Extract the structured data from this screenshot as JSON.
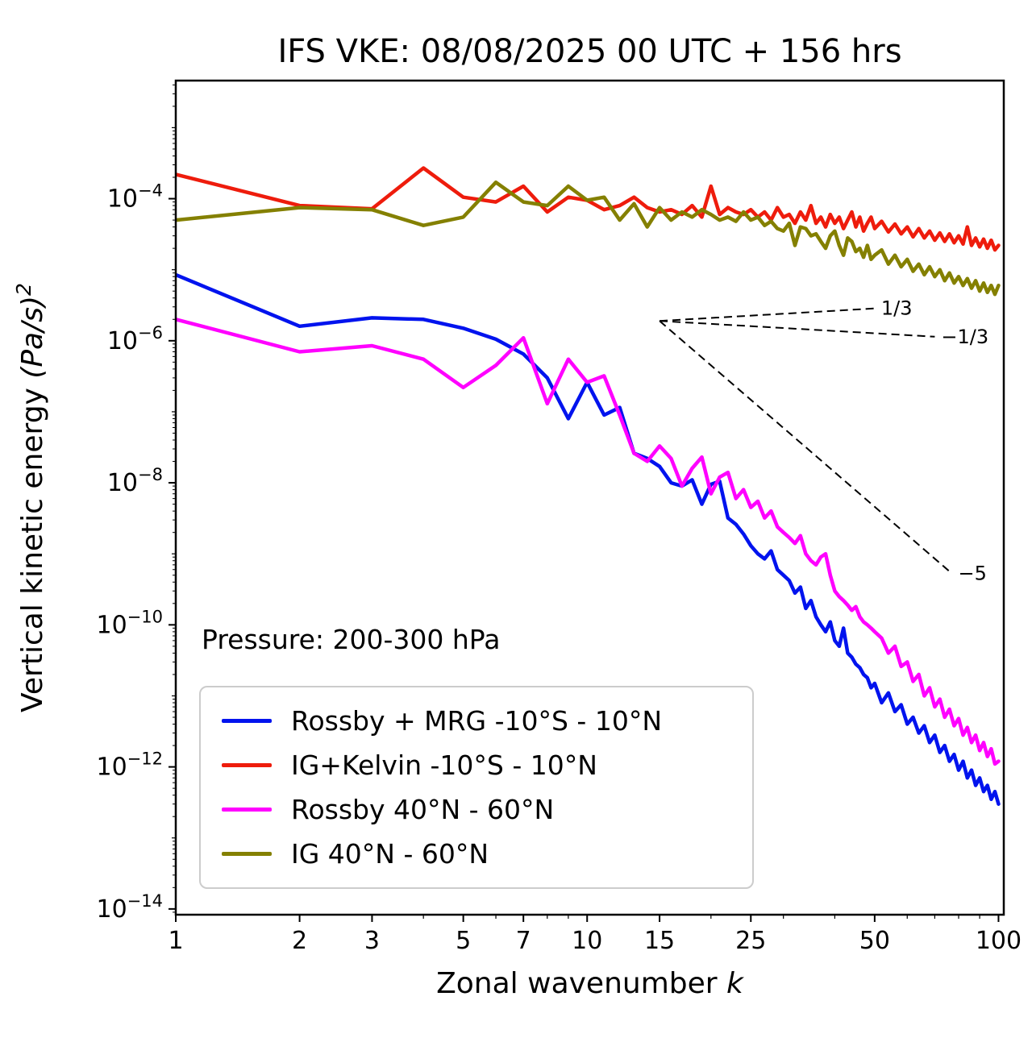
{
  "chart_data": {
    "type": "line",
    "title": "IFS VKE: 08/08/2025 00 UTC + 156 hrs",
    "xlabel": "Zonal wavenumber k",
    "ylabel": "Vertical kinetic energy (Pa/s)²",
    "xscale": "log",
    "yscale": "log",
    "xlim": [
      1,
      103
    ],
    "ylim": [
      8.3e-15,
      0.0046
    ],
    "x_ticks": [
      1,
      2,
      3,
      5,
      7,
      10,
      15,
      25,
      50,
      100
    ],
    "x_minor_ticks": [
      4,
      6,
      8,
      9,
      20,
      30,
      40,
      60,
      70,
      80,
      90
    ],
    "y_tick_exponents": [
      -14,
      -12,
      -10,
      -8,
      -6,
      -4
    ],
    "y_unlabeled_decades": [
      -13,
      -11,
      -9,
      -7,
      -5,
      -3
    ],
    "grid": false,
    "legend_position": "lower left",
    "annotation": {
      "text": "Pressure: 200-300 hPa"
    },
    "guides": [
      {
        "label": "1/3",
        "x1": 15,
        "y1": 1.9e-06,
        "x2": 50,
        "y2": 2.85e-06
      },
      {
        "label": "-1/3",
        "x1": 15,
        "y1": 1.9e-06,
        "x2": 70,
        "y2": 1.14e-06
      },
      {
        "label": "-5",
        "x1": 15,
        "y1": 1.9e-06,
        "x2": 77,
        "y2": 5.3e-10
      }
    ],
    "series": [
      {
        "name": "Rossby + MRG -10°S - 10°N",
        "color": "#0013ee",
        "points": [
          [
            1,
            8.5e-06
          ],
          [
            2,
            1.6e-06
          ],
          [
            3,
            2.1e-06
          ],
          [
            4,
            2e-06
          ],
          [
            5,
            1.5e-06
          ],
          [
            6,
            1.05e-06
          ],
          [
            7,
            6.5e-07
          ],
          [
            8,
            3e-07
          ],
          [
            9,
            8e-08
          ],
          [
            10,
            2.6e-07
          ],
          [
            11,
            9e-08
          ],
          [
            12,
            1.15e-07
          ],
          [
            13,
            2.6e-08
          ],
          [
            14,
            2.2e-08
          ],
          [
            15,
            1.7e-08
          ],
          [
            16,
            1e-08
          ],
          [
            17,
            9e-09
          ],
          [
            18,
            1.1e-08
          ],
          [
            19,
            5e-09
          ],
          [
            20,
            9.5e-09
          ],
          [
            21,
            1.05e-08
          ],
          [
            22,
            3.2e-09
          ],
          [
            23,
            2.6e-09
          ],
          [
            24,
            1.9e-09
          ],
          [
            25,
            1.3e-09
          ],
          [
            26,
            1e-09
          ],
          [
            27,
            8.5e-10
          ],
          [
            28,
            1.1e-09
          ],
          [
            29,
            6e-10
          ],
          [
            30,
            5e-10
          ],
          [
            31,
            4.2e-10
          ],
          [
            32,
            2.8e-10
          ],
          [
            33,
            3.4e-10
          ],
          [
            34,
            1.7e-10
          ],
          [
            35,
            2.2e-10
          ],
          [
            36,
            1.3e-10
          ],
          [
            37,
            1e-10
          ],
          [
            38,
            8e-11
          ],
          [
            39,
            1.1e-10
          ],
          [
            40,
            6e-11
          ],
          [
            41,
            5e-11
          ],
          [
            42,
            9e-11
          ],
          [
            43,
            4e-11
          ],
          [
            44,
            3.5e-11
          ],
          [
            45,
            2.8e-11
          ],
          [
            46,
            2.5e-11
          ],
          [
            47,
            2e-11
          ],
          [
            48,
            1.8e-11
          ],
          [
            49,
            1.3e-11
          ],
          [
            50,
            1.5e-11
          ],
          [
            52,
            8e-12
          ],
          [
            54,
            1.1e-11
          ],
          [
            56,
            6e-12
          ],
          [
            58,
            7.5e-12
          ],
          [
            60,
            4e-12
          ],
          [
            62,
            5e-12
          ],
          [
            64,
            3e-12
          ],
          [
            66,
            3.8e-12
          ],
          [
            68,
            2.2e-12
          ],
          [
            70,
            2.8e-12
          ],
          [
            72,
            1.6e-12
          ],
          [
            74,
            2e-12
          ],
          [
            76,
            1.2e-12
          ],
          [
            78,
            1.5e-12
          ],
          [
            80,
            9e-13
          ],
          [
            82,
            1.2e-12
          ],
          [
            84,
            7e-13
          ],
          [
            86,
            9e-13
          ],
          [
            88,
            5.5e-13
          ],
          [
            90,
            7e-13
          ],
          [
            92,
            4.5e-13
          ],
          [
            94,
            5.5e-13
          ],
          [
            96,
            3.5e-13
          ],
          [
            98,
            4.5e-13
          ],
          [
            100,
            3e-13
          ]
        ]
      },
      {
        "name": "IG+Kelvin -10°S - 10°N",
        "color": "#ee1c0c",
        "points": [
          [
            1,
            0.00022
          ],
          [
            2,
            8e-05
          ],
          [
            3,
            7.2e-05
          ],
          [
            4,
            0.00027
          ],
          [
            5,
            0.000105
          ],
          [
            6,
            9e-05
          ],
          [
            7,
            0.00015
          ],
          [
            8,
            6.5e-05
          ],
          [
            9,
            0.000105
          ],
          [
            10,
            9.5e-05
          ],
          [
            11,
            7e-05
          ],
          [
            12,
            8e-05
          ],
          [
            13,
            0.000105
          ],
          [
            14,
            7.5e-05
          ],
          [
            15,
            6.5e-05
          ],
          [
            16,
            7e-05
          ],
          [
            17,
            6e-05
          ],
          [
            18,
            8e-05
          ],
          [
            19,
            5.5e-05
          ],
          [
            20,
            0.00015
          ],
          [
            21,
            6e-05
          ],
          [
            22,
            7.5e-05
          ],
          [
            23,
            6.5e-05
          ],
          [
            24,
            6e-05
          ],
          [
            25,
            7e-05
          ],
          [
            26,
            5.5e-05
          ],
          [
            27,
            6.5e-05
          ],
          [
            28,
            5e-05
          ],
          [
            29,
            7.5e-05
          ],
          [
            30,
            5.5e-05
          ],
          [
            31,
            6e-05
          ],
          [
            32,
            4.5e-05
          ],
          [
            33,
            6.5e-05
          ],
          [
            34,
            5e-05
          ],
          [
            35,
            8e-05
          ],
          [
            36,
            4.5e-05
          ],
          [
            37,
            5.5e-05
          ],
          [
            38,
            4e-05
          ],
          [
            39,
            6e-05
          ],
          [
            40,
            4.5e-05
          ],
          [
            41,
            5.5e-05
          ],
          [
            42,
            3.8e-05
          ],
          [
            43,
            5e-05
          ],
          [
            44,
            6.5e-05
          ],
          [
            45,
            4e-05
          ],
          [
            46,
            5.5e-05
          ],
          [
            47,
            3.5e-05
          ],
          [
            48,
            4.5e-05
          ],
          [
            49,
            5.5e-05
          ],
          [
            50,
            3.8e-05
          ],
          [
            52,
            4.8e-05
          ],
          [
            54,
            3.4e-05
          ],
          [
            56,
            4.4e-05
          ],
          [
            58,
            3.2e-05
          ],
          [
            60,
            4e-05
          ],
          [
            62,
            2.9e-05
          ],
          [
            64,
            3.8e-05
          ],
          [
            66,
            2.8e-05
          ],
          [
            68,
            3.5e-05
          ],
          [
            70,
            2.6e-05
          ],
          [
            72,
            3.3e-05
          ],
          [
            74,
            2.5e-05
          ],
          [
            76,
            3.2e-05
          ],
          [
            78,
            2.4e-05
          ],
          [
            80,
            3e-05
          ],
          [
            82,
            2.3e-05
          ],
          [
            84,
            4e-05
          ],
          [
            86,
            2.2e-05
          ],
          [
            88,
            2.8e-05
          ],
          [
            90,
            2.1e-05
          ],
          [
            92,
            2.7e-05
          ],
          [
            94,
            2e-05
          ],
          [
            96,
            2.6e-05
          ],
          [
            98,
            1.9e-05
          ],
          [
            100,
            2.2e-05
          ]
        ]
      },
      {
        "name": "Rossby 40°N - 60°N",
        "color": "#ff00ff",
        "points": [
          [
            1,
            2e-06
          ],
          [
            2,
            7e-07
          ],
          [
            3,
            8.5e-07
          ],
          [
            4,
            5.5e-07
          ],
          [
            5,
            2.2e-07
          ],
          [
            6,
            4.5e-07
          ],
          [
            7,
            1.1e-06
          ],
          [
            8,
            1.3e-07
          ],
          [
            9,
            5.5e-07
          ],
          [
            10,
            2.6e-07
          ],
          [
            11,
            3.2e-07
          ],
          [
            12,
            9e-08
          ],
          [
            13,
            2.6e-08
          ],
          [
            14,
            2e-08
          ],
          [
            15,
            3.3e-08
          ],
          [
            16,
            2.2e-08
          ],
          [
            17,
            9e-09
          ],
          [
            18,
            1.6e-08
          ],
          [
            19,
            2.3e-08
          ],
          [
            20,
            7e-09
          ],
          [
            21,
            1.2e-08
          ],
          [
            22,
            1.4e-08
          ],
          [
            23,
            6e-09
          ],
          [
            24,
            8e-09
          ],
          [
            25,
            4.5e-09
          ],
          [
            26,
            5.5e-09
          ],
          [
            27,
            3.2e-09
          ],
          [
            28,
            4e-09
          ],
          [
            29,
            2.4e-09
          ],
          [
            30,
            2e-09
          ],
          [
            31,
            1.7e-09
          ],
          [
            32,
            1.4e-09
          ],
          [
            33,
            1.8e-09
          ],
          [
            34,
            1e-09
          ],
          [
            35,
            8e-10
          ],
          [
            36,
            7e-10
          ],
          [
            37,
            9e-10
          ],
          [
            38,
            1e-09
          ],
          [
            39,
            5e-10
          ],
          [
            40,
            3e-10
          ],
          [
            41,
            2.5e-10
          ],
          [
            42,
            2.2e-10
          ],
          [
            43,
            1.9e-10
          ],
          [
            44,
            1.6e-10
          ],
          [
            45,
            1.8e-10
          ],
          [
            46,
            1.3e-10
          ],
          [
            47,
            1.1e-10
          ],
          [
            48,
            1e-10
          ],
          [
            49,
            9e-11
          ],
          [
            50,
            8e-11
          ],
          [
            52,
            6.5e-11
          ],
          [
            54,
            4e-11
          ],
          [
            56,
            5e-11
          ],
          [
            58,
            2.6e-11
          ],
          [
            60,
            3e-11
          ],
          [
            62,
            1.6e-11
          ],
          [
            64,
            2e-11
          ],
          [
            66,
            1e-11
          ],
          [
            68,
            1.3e-11
          ],
          [
            70,
            7e-12
          ],
          [
            72,
            9e-12
          ],
          [
            74,
            5e-12
          ],
          [
            76,
            6.5e-12
          ],
          [
            78,
            3.8e-12
          ],
          [
            80,
            4.8e-12
          ],
          [
            82,
            2.8e-12
          ],
          [
            84,
            3.6e-12
          ],
          [
            86,
            2.2e-12
          ],
          [
            88,
            2.8e-12
          ],
          [
            90,
            1.7e-12
          ],
          [
            92,
            2.2e-12
          ],
          [
            94,
            1.4e-12
          ],
          [
            96,
            1.8e-12
          ],
          [
            98,
            1.1e-12
          ],
          [
            100,
            1.2e-12
          ]
        ]
      },
      {
        "name": "IG 40°N - 60°N",
        "color": "#848000",
        "points": [
          [
            1,
            5e-05
          ],
          [
            2,
            7.5e-05
          ],
          [
            3,
            7e-05
          ],
          [
            4,
            4.2e-05
          ],
          [
            5,
            5.5e-05
          ],
          [
            6,
            0.00017
          ],
          [
            7,
            9e-05
          ],
          [
            8,
            8e-05
          ],
          [
            9,
            0.00015
          ],
          [
            10,
            9.5e-05
          ],
          [
            11,
            0.000105
          ],
          [
            12,
            5e-05
          ],
          [
            13,
            8.5e-05
          ],
          [
            14,
            4e-05
          ],
          [
            15,
            7.5e-05
          ],
          [
            16,
            5e-05
          ],
          [
            17,
            6.5e-05
          ],
          [
            18,
            5.5e-05
          ],
          [
            19,
            7e-05
          ],
          [
            20,
            6e-05
          ],
          [
            21,
            5e-05
          ],
          [
            22,
            5.5e-05
          ],
          [
            23,
            4.8e-05
          ],
          [
            24,
            6.5e-05
          ],
          [
            25,
            5e-05
          ],
          [
            26,
            5.5e-05
          ],
          [
            27,
            4.2e-05
          ],
          [
            28,
            4.8e-05
          ],
          [
            29,
            3.8e-05
          ],
          [
            30,
            3.5e-05
          ],
          [
            31,
            4.5e-05
          ],
          [
            32,
            2.2e-05
          ],
          [
            33,
            4e-05
          ],
          [
            34,
            3.8e-05
          ],
          [
            35,
            3e-05
          ],
          [
            36,
            3.2e-05
          ],
          [
            37,
            2.5e-05
          ],
          [
            38,
            2e-05
          ],
          [
            39,
            3e-05
          ],
          [
            40,
            3.5e-05
          ],
          [
            41,
            2.2e-05
          ],
          [
            42,
            1.6e-05
          ],
          [
            43,
            2.8e-05
          ],
          [
            44,
            2.5e-05
          ],
          [
            45,
            1.8e-05
          ],
          [
            46,
            2e-05
          ],
          [
            47,
            1.5e-05
          ],
          [
            48,
            2.2e-05
          ],
          [
            49,
            1.4e-05
          ],
          [
            50,
            1.6e-05
          ],
          [
            52,
            1.9e-05
          ],
          [
            54,
            1.2e-05
          ],
          [
            56,
            1.6e-05
          ],
          [
            58,
            1.1e-05
          ],
          [
            60,
            1.4e-05
          ],
          [
            62,
            9.5e-06
          ],
          [
            64,
            1.2e-05
          ],
          [
            66,
            8.5e-06
          ],
          [
            68,
            1.1e-05
          ],
          [
            70,
            8e-06
          ],
          [
            72,
            1e-05
          ],
          [
            74,
            7e-06
          ],
          [
            76,
            9e-06
          ],
          [
            78,
            6.5e-06
          ],
          [
            80,
            8e-06
          ],
          [
            82,
            6e-06
          ],
          [
            84,
            7.5e-06
          ],
          [
            86,
            5.5e-06
          ],
          [
            88,
            7e-06
          ],
          [
            90,
            5e-06
          ],
          [
            92,
            6.5e-06
          ],
          [
            94,
            4.8e-06
          ],
          [
            96,
            6e-06
          ],
          [
            98,
            4.5e-06
          ],
          [
            100,
            6e-06
          ]
        ]
      }
    ]
  }
}
